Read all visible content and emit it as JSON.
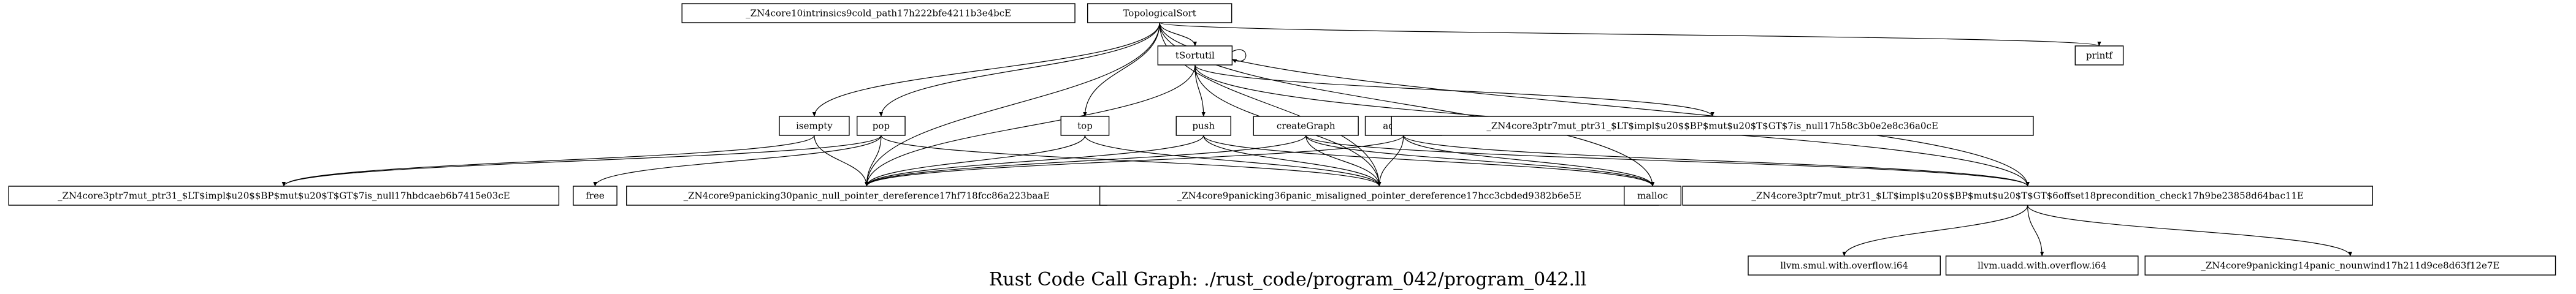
{
  "caption": "Rust Code Call Graph: ./rust_code/program_042/program_042.ll",
  "nodes": {
    "intrinsics_cold": "_ZN4core10intrinsics9cold_path17h222bfe4211b3e4bcE",
    "toposort": "TopologicalSort",
    "tsortutil": "tSortutil",
    "printf": "printf",
    "isempty": "isempty",
    "pop": "pop",
    "top": "top",
    "push": "push",
    "creategraph": "createGraph",
    "addedge": "addEdge",
    "is_null_mut_0c": "_ZN4core3ptr7mut_ptr31_$LT$impl$u20$$BP$mut$u20$T$GT$7is_null17h58c3b0e2e8c36a0cE",
    "is_null_mut_3e": "_ZN4core3ptr7mut_ptr31_$LT$impl$u20$$BP$mut$u20$T$GT$7is_null17hbdcaeb6b7415e03cE",
    "free": "free",
    "null_deref": "_ZN4core9panicking30panic_null_pointer_dereference17hf718fcc86a223baaE",
    "misaligned": "_ZN4core9panicking36panic_misaligned_pointer_dereference17hcc3cbded9382b6e5E",
    "malloc": "malloc",
    "offset_check": "_ZN4core3ptr7mut_ptr31_$LT$impl$u20$$BP$mut$u20$T$GT$6offset18precondition_check17h9be23858d64bac11E",
    "smul": "llvm.smul.with.overflow.i64",
    "uadd": "llvm.uadd.with.overflow.i64",
    "nounwind": "_ZN4core9panicking14panic_nounwind17h211d9ce8d63f12e7E"
  },
  "edges": [
    [
      "toposort",
      "tsortutil"
    ],
    [
      "toposort",
      "printf"
    ],
    [
      "toposort",
      "isempty"
    ],
    [
      "toposort",
      "pop"
    ],
    [
      "toposort",
      "top"
    ],
    [
      "toposort",
      "null_deref"
    ],
    [
      "toposort",
      "misaligned"
    ],
    [
      "toposort",
      "offset_check"
    ],
    [
      "toposort",
      "malloc"
    ],
    [
      "tsortutil",
      "tsortutil"
    ],
    [
      "tsortutil",
      "push"
    ],
    [
      "tsortutil",
      "is_null_mut_0c"
    ],
    [
      "tsortutil",
      "null_deref"
    ],
    [
      "tsortutil",
      "misaligned"
    ],
    [
      "tsortutil",
      "offset_check"
    ],
    [
      "isempty",
      "is_null_mut_3e"
    ],
    [
      "isempty",
      "null_deref"
    ],
    [
      "pop",
      "is_null_mut_3e"
    ],
    [
      "pop",
      "free"
    ],
    [
      "pop",
      "null_deref"
    ],
    [
      "pop",
      "misaligned"
    ],
    [
      "top",
      "null_deref"
    ],
    [
      "top",
      "misaligned"
    ],
    [
      "push",
      "null_deref"
    ],
    [
      "push",
      "misaligned"
    ],
    [
      "push",
      "malloc"
    ],
    [
      "creategraph",
      "null_deref"
    ],
    [
      "creategraph",
      "misaligned"
    ],
    [
      "creategraph",
      "malloc"
    ],
    [
      "creategraph",
      "offset_check"
    ],
    [
      "addedge",
      "null_deref"
    ],
    [
      "addedge",
      "misaligned"
    ],
    [
      "addedge",
      "malloc"
    ],
    [
      "addedge",
      "offset_check"
    ],
    [
      "offset_check",
      "smul"
    ],
    [
      "offset_check",
      "uadd"
    ],
    [
      "offset_check",
      "nounwind"
    ]
  ]
}
